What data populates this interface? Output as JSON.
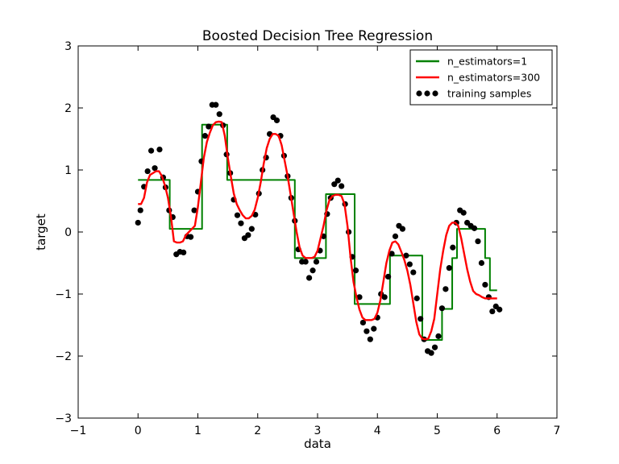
{
  "chart_data": {
    "type": "line",
    "title": "Boosted Decision Tree Regression",
    "xlabel": "data",
    "ylabel": "target",
    "xlim": [
      -1,
      7
    ],
    "ylim": [
      -3,
      3
    ],
    "xticks": [
      -1,
      0,
      1,
      2,
      3,
      4,
      5,
      6,
      7
    ],
    "xtick_labels": [
      "−1",
      "0",
      "1",
      "2",
      "3",
      "4",
      "5",
      "6",
      "7"
    ],
    "yticks": [
      -3,
      -2,
      -1,
      0,
      1,
      2,
      3
    ],
    "ytick_labels": [
      "−3",
      "−2",
      "−1",
      "0",
      "1",
      "2",
      "3"
    ],
    "grid": false,
    "legend_position": "top-right",
    "legend": [
      "n_estimators=1",
      "n_estimators=300",
      "training samples"
    ],
    "colors": {
      "n_estimators=1": "#008000",
      "n_estimators=300": "#ff0000",
      "training samples": "#000000"
    },
    "series": [
      {
        "name": "n_estimators=1",
        "type": "step",
        "color": "#008000",
        "x": [
          0.0,
          0.53,
          0.53,
          1.07,
          1.07,
          1.49,
          1.49,
          2.62,
          2.62,
          3.14,
          3.14,
          3.62,
          3.62,
          4.21,
          4.21,
          4.75,
          4.75,
          5.08,
          5.08,
          5.25,
          5.25,
          5.33,
          5.33,
          5.8,
          5.8,
          5.88,
          5.88,
          6.0
        ],
        "y": [
          0.84,
          0.84,
          0.05,
          0.05,
          1.73,
          1.73,
          0.84,
          0.84,
          -0.42,
          -0.42,
          0.61,
          0.61,
          -1.16,
          -1.16,
          -0.38,
          -0.38,
          -1.74,
          -1.74,
          -1.24,
          -1.24,
          -0.42,
          -0.42,
          0.05,
          0.05,
          -0.42,
          -0.42,
          -0.94,
          -0.94
        ]
      },
      {
        "name": "n_estimators=300",
        "type": "line",
        "color": "#ff0000",
        "x": [
          0.0,
          0.05,
          0.1,
          0.15,
          0.2,
          0.25,
          0.3,
          0.35,
          0.4,
          0.45,
          0.5,
          0.55,
          0.6,
          0.65,
          0.7,
          0.75,
          0.8,
          0.85,
          0.9,
          0.95,
          1.0,
          1.05,
          1.1,
          1.15,
          1.2,
          1.25,
          1.3,
          1.35,
          1.4,
          1.45,
          1.5,
          1.55,
          1.6,
          1.65,
          1.7,
          1.75,
          1.8,
          1.85,
          1.9,
          1.95,
          2.0,
          2.05,
          2.1,
          2.15,
          2.2,
          2.25,
          2.3,
          2.35,
          2.4,
          2.45,
          2.5,
          2.55,
          2.6,
          2.65,
          2.7,
          2.75,
          2.8,
          2.85,
          2.9,
          2.95,
          3.0,
          3.05,
          3.1,
          3.15,
          3.2,
          3.25,
          3.3,
          3.35,
          3.4,
          3.45,
          3.5,
          3.55,
          3.6,
          3.65,
          3.7,
          3.75,
          3.8,
          3.85,
          3.9,
          3.95,
          4.0,
          4.05,
          4.1,
          4.15,
          4.2,
          4.25,
          4.3,
          4.35,
          4.4,
          4.45,
          4.5,
          4.55,
          4.6,
          4.65,
          4.7,
          4.75,
          4.8,
          4.85,
          4.9,
          4.95,
          5.0,
          5.05,
          5.1,
          5.15,
          5.2,
          5.25,
          5.3,
          5.35,
          5.4,
          5.45,
          5.5,
          5.55,
          5.6,
          5.65,
          5.7,
          5.75,
          5.8,
          5.85,
          5.9,
          5.95,
          6.0
        ],
        "y": [
          0.45,
          0.45,
          0.55,
          0.8,
          0.92,
          0.95,
          0.98,
          0.98,
          0.9,
          0.75,
          0.55,
          0.25,
          -0.15,
          -0.17,
          -0.17,
          -0.15,
          -0.05,
          0.0,
          0.05,
          0.1,
          0.4,
          0.8,
          1.2,
          1.45,
          1.6,
          1.72,
          1.77,
          1.78,
          1.77,
          1.55,
          1.2,
          0.9,
          0.62,
          0.45,
          0.35,
          0.27,
          0.22,
          0.22,
          0.26,
          0.36,
          0.55,
          0.8,
          1.1,
          1.35,
          1.5,
          1.58,
          1.58,
          1.55,
          1.4,
          1.15,
          0.9,
          0.6,
          0.3,
          0.0,
          -0.25,
          -0.38,
          -0.42,
          -0.42,
          -0.42,
          -0.4,
          -0.3,
          -0.1,
          0.1,
          0.35,
          0.52,
          0.58,
          0.6,
          0.6,
          0.58,
          0.45,
          0.1,
          -0.4,
          -0.8,
          -1.05,
          -1.25,
          -1.38,
          -1.42,
          -1.42,
          -1.42,
          -1.4,
          -1.3,
          -1.1,
          -0.8,
          -0.5,
          -0.3,
          -0.17,
          -0.15,
          -0.2,
          -0.32,
          -0.45,
          -0.62,
          -0.85,
          -1.15,
          -1.45,
          -1.65,
          -1.72,
          -1.73,
          -1.72,
          -1.6,
          -1.4,
          -1.0,
          -0.6,
          -0.3,
          -0.05,
          0.1,
          0.15,
          0.15,
          0.1,
          -0.1,
          -0.35,
          -0.6,
          -0.8,
          -0.95,
          -1.0,
          -1.02,
          -1.05,
          -1.07,
          -1.07,
          -1.07,
          -1.07,
          -1.07
        ]
      },
      {
        "name": "training samples",
        "type": "scatter",
        "color": "#000000",
        "x": [
          0.0,
          0.04,
          0.1,
          0.16,
          0.22,
          0.28,
          0.36,
          0.42,
          0.46,
          0.52,
          0.58,
          0.64,
          0.7,
          0.76,
          0.82,
          0.88,
          0.94,
          1.0,
          1.06,
          1.12,
          1.18,
          1.24,
          1.3,
          1.36,
          1.42,
          1.48,
          1.54,
          1.6,
          1.66,
          1.72,
          1.78,
          1.84,
          1.9,
          1.96,
          2.02,
          2.08,
          2.14,
          2.2,
          2.26,
          2.32,
          2.38,
          2.44,
          2.5,
          2.56,
          2.62,
          2.68,
          2.74,
          2.8,
          2.86,
          2.92,
          2.98,
          3.04,
          3.1,
          3.16,
          3.22,
          3.28,
          3.34,
          3.4,
          3.46,
          3.52,
          3.58,
          3.64,
          3.7,
          3.76,
          3.82,
          3.88,
          3.94,
          4.0,
          4.06,
          4.12,
          4.18,
          4.24,
          4.3,
          4.36,
          4.42,
          4.48,
          4.54,
          4.6,
          4.66,
          4.72,
          4.78,
          4.84,
          4.9,
          4.96,
          5.02,
          5.08,
          5.14,
          5.2,
          5.26,
          5.32,
          5.38,
          5.44,
          5.5,
          5.56,
          5.62,
          5.68,
          5.74,
          5.8,
          5.86,
          5.92,
          5.98,
          6.04
        ],
        "y": [
          0.15,
          0.35,
          0.73,
          0.98,
          1.31,
          1.03,
          1.33,
          0.88,
          0.72,
          0.35,
          0.24,
          -0.36,
          -0.32,
          -0.33,
          -0.07,
          -0.08,
          0.35,
          0.65,
          1.14,
          1.55,
          1.7,
          2.05,
          2.05,
          1.9,
          1.72,
          1.25,
          0.95,
          0.52,
          0.27,
          0.14,
          -0.1,
          -0.05,
          0.05,
          0.28,
          0.62,
          1.0,
          1.2,
          1.58,
          1.85,
          1.8,
          1.55,
          1.23,
          0.9,
          0.55,
          0.18,
          -0.28,
          -0.48,
          -0.48,
          -0.74,
          -0.62,
          -0.48,
          -0.3,
          -0.07,
          0.29,
          0.55,
          0.77,
          0.83,
          0.74,
          0.45,
          0.0,
          -0.4,
          -0.62,
          -1.05,
          -1.46,
          -1.6,
          -1.73,
          -1.56,
          -1.38,
          -1.0,
          -1.05,
          -0.72,
          -0.35,
          -0.07,
          0.1,
          0.05,
          -0.38,
          -0.52,
          -0.65,
          -1.07,
          -1.4,
          -1.73,
          -1.92,
          -1.95,
          -1.86,
          -1.68,
          -1.23,
          -0.92,
          -0.58,
          -0.25,
          0.15,
          0.35,
          0.31,
          0.15,
          0.1,
          0.06,
          -0.15,
          -0.5,
          -0.85,
          -1.05,
          -1.28,
          -1.2,
          -1.25
        ]
      }
    ]
  }
}
